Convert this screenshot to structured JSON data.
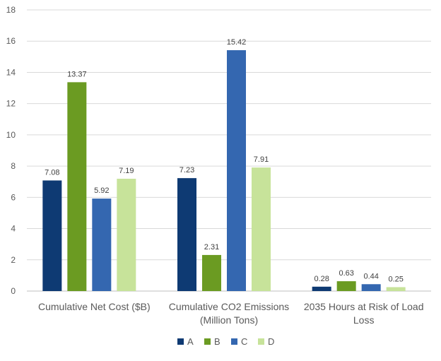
{
  "chart_data": {
    "type": "bar",
    "title": "",
    "xlabel": "",
    "ylabel": "",
    "ylim": [
      0,
      18
    ],
    "yticks": [
      0,
      2,
      4,
      6,
      8,
      10,
      12,
      14,
      16,
      18
    ],
    "grid": true,
    "legend_position": "bottom",
    "categories": [
      [
        "Cumulative Net Cost ($B)"
      ],
      [
        "Cumulative CO2 Emissions",
        "(Million Tons)"
      ],
      [
        "2035 Hours at Risk of Load",
        "Loss"
      ]
    ],
    "series": [
      {
        "name": "A",
        "color": "#0e3a73",
        "values": [
          7.08,
          7.23,
          0.28
        ],
        "labels": [
          "7.08",
          "7.23",
          "0.28"
        ]
      },
      {
        "name": "B",
        "color": "#6b9b22",
        "values": [
          13.37,
          2.31,
          0.63
        ],
        "labels": [
          "13.37",
          "2.31",
          "0.63"
        ]
      },
      {
        "name": "C",
        "color": "#3467b0",
        "values": [
          5.92,
          15.42,
          0.44
        ],
        "labels": [
          "5.92",
          "15.42",
          "0.44"
        ]
      },
      {
        "name": "D",
        "color": "#c7e39a",
        "values": [
          7.19,
          7.91,
          0.25
        ],
        "labels": [
          "7.19",
          "7.91",
          "0.25"
        ]
      }
    ]
  }
}
